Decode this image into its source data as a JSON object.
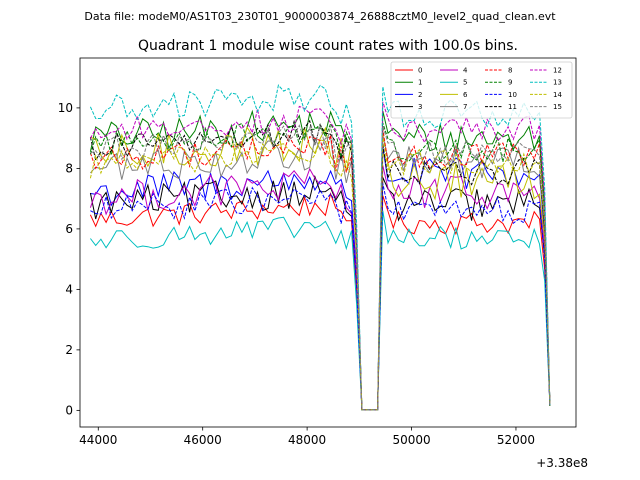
{
  "figure": {
    "suptitle": "Data file: modeM0/AS1T03_230T01_9000003874_26888cztM0_level2_quad_clean.evt",
    "x_offset_label": "+3.38e8"
  },
  "chart_data": {
    "type": "line",
    "title": "Quadrant 1 module wise count rates with 100.0s bins.",
    "xlabel": "",
    "ylabel": "",
    "x_offset": 338000000,
    "xlim": [
      43650,
      53150
    ],
    "ylim": [
      -0.55,
      11.65
    ],
    "xticks": [
      44000,
      46000,
      48000,
      50000,
      52000
    ],
    "xtick_labels": [
      "44000",
      "46000",
      "48000",
      "50000",
      "52000"
    ],
    "yticks": [
      0,
      2,
      4,
      6,
      8,
      10
    ],
    "ytick_labels": [
      "0",
      "2",
      "4",
      "6",
      "8",
      "10"
    ],
    "x_range": [
      43850,
      52650
    ],
    "bin": 100,
    "gap": {
      "start": 49050,
      "end": 49350,
      "level": 0.02
    },
    "legend": {
      "placement": "top-right",
      "columns": 4
    },
    "series": [
      {
        "name": "0",
        "color": "#ff0000",
        "dash": false,
        "base": 6.3,
        "amp": 0.35,
        "post": 6.2
      },
      {
        "name": "1",
        "color": "#008000",
        "dash": false,
        "base": 9.0,
        "amp": 0.5,
        "post": 9.0
      },
      {
        "name": "2",
        "color": "#0000ff",
        "dash": false,
        "base": 7.2,
        "amp": 0.5,
        "post": 7.8
      },
      {
        "name": "3",
        "color": "#000000",
        "dash": false,
        "base": 6.8,
        "amp": 0.5,
        "post": 6.8
      },
      {
        "name": "4",
        "color": "#bf00bf",
        "dash": false,
        "base": 7.0,
        "amp": 0.5,
        "post": 7.2
      },
      {
        "name": "5",
        "color": "#00bfbf",
        "dash": false,
        "base": 5.6,
        "amp": 0.35,
        "post": 5.7
      },
      {
        "name": "6",
        "color": "#bfbf00",
        "dash": false,
        "base": 8.4,
        "amp": 0.6,
        "post": 7.6
      },
      {
        "name": "7",
        "color": "#808080",
        "dash": false,
        "base": 8.0,
        "amp": 0.5,
        "post": 8.2
      },
      {
        "name": "8",
        "color": "#ff0000",
        "dash": true,
        "base": 8.3,
        "amp": 0.4,
        "post": 8.4
      },
      {
        "name": "9",
        "color": "#008000",
        "dash": true,
        "base": 8.8,
        "amp": 0.4,
        "post": 8.6
      },
      {
        "name": "10",
        "color": "#0000ff",
        "dash": true,
        "base": 6.6,
        "amp": 0.4,
        "post": 6.6
      },
      {
        "name": "11",
        "color": "#000000",
        "dash": true,
        "base": 8.7,
        "amp": 0.4,
        "post": 7.9
      },
      {
        "name": "12",
        "color": "#bf00bf",
        "dash": true,
        "base": 9.2,
        "amp": 0.4,
        "post": 9.3
      },
      {
        "name": "13",
        "color": "#00bfbf",
        "dash": true,
        "base": 9.9,
        "amp": 0.45,
        "post": 9.8
      },
      {
        "name": "14",
        "color": "#bfbf00",
        "dash": true,
        "base": 8.1,
        "amp": 0.4,
        "post": 8.2
      },
      {
        "name": "15",
        "color": "#808080",
        "dash": true,
        "base": 8.6,
        "amp": 0.4,
        "post": 8.5
      }
    ]
  }
}
